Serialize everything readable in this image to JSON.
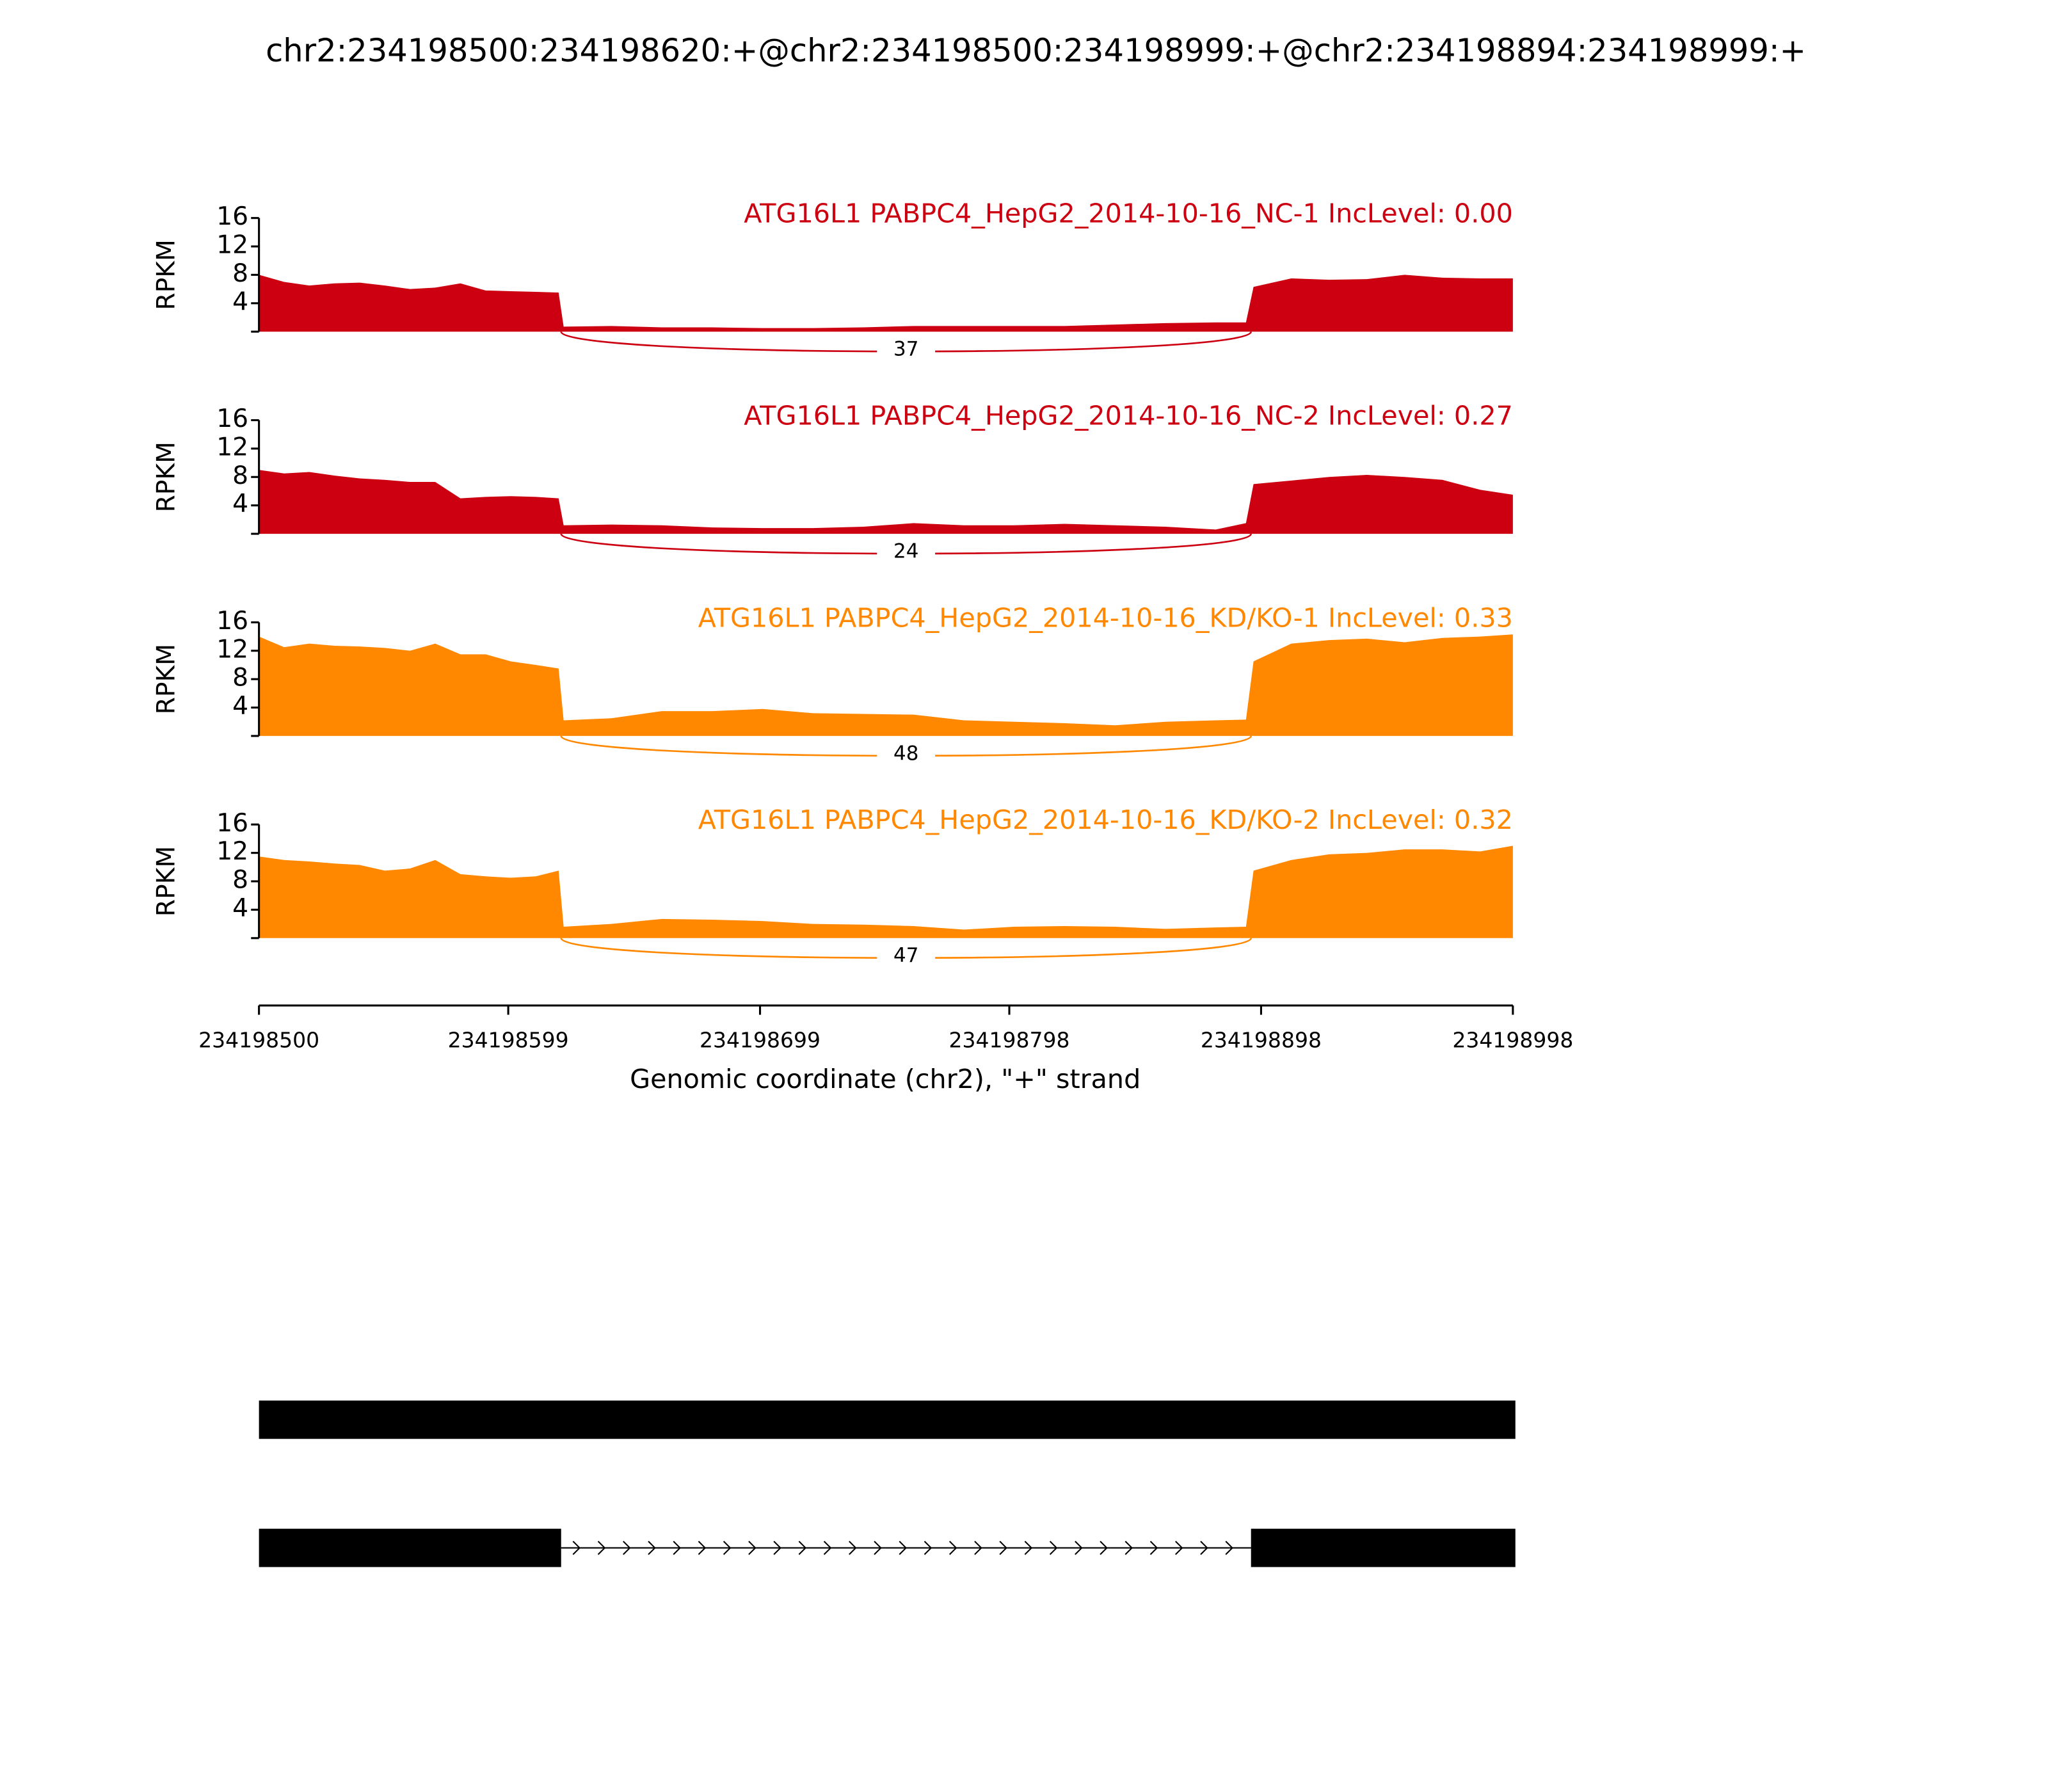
{
  "title": "chr2:234198500:234198620:+@chr2:234198500:234198999:+@chr2:234198894:234198999:+",
  "chart_data": [
    {
      "type": "area",
      "title": "ATG16L1 PABPC4_HepG2_2014-10-16_NC-1 IncLevel: 0.00",
      "ylabel": "RPKM",
      "color": "#cc0011",
      "xlim": [
        234198500,
        234198998
      ],
      "ylim": [
        0,
        16
      ],
      "yticks": [
        4,
        8,
        12,
        16
      ],
      "x": [
        234198500,
        234198510,
        234198520,
        234198530,
        234198540,
        234198550,
        234198560,
        234198570,
        234198580,
        234198590,
        234198600,
        234198610,
        234198619,
        234198621,
        234198640,
        234198660,
        234198680,
        234198700,
        234198720,
        234198740,
        234198760,
        234198780,
        234198800,
        234198820,
        234198840,
        234198860,
        234198880,
        234198892,
        234198895,
        234198910,
        234198925,
        234198940,
        234198955,
        234198970,
        234198985,
        234198998
      ],
      "values": [
        8,
        7,
        6.5,
        6.8,
        6.9,
        6.5,
        6,
        6.2,
        6.8,
        5.8,
        5.7,
        5.6,
        5.5,
        0.7,
        0.8,
        0.6,
        0.6,
        0.5,
        0.5,
        0.6,
        0.8,
        0.8,
        0.8,
        0.8,
        1.0,
        1.2,
        1.3,
        1.3,
        6.3,
        7.5,
        7.3,
        7.4,
        8,
        7.6,
        7.5,
        7.5
      ],
      "junctions": [
        {
          "start": 234198620,
          "end": 234198894,
          "count": 37
        }
      ]
    },
    {
      "type": "area",
      "title": "ATG16L1 PABPC4_HepG2_2014-10-16_NC-2 IncLevel: 0.27",
      "ylabel": "RPKM",
      "color": "#cc0011",
      "xlim": [
        234198500,
        234198998
      ],
      "ylim": [
        0,
        16
      ],
      "yticks": [
        4,
        8,
        12,
        16
      ],
      "x": [
        234198500,
        234198510,
        234198520,
        234198530,
        234198540,
        234198550,
        234198560,
        234198570,
        234198580,
        234198590,
        234198600,
        234198610,
        234198619,
        234198621,
        234198640,
        234198660,
        234198680,
        234198700,
        234198720,
        234198740,
        234198760,
        234198780,
        234198800,
        234198820,
        234198840,
        234198860,
        234198880,
        234198892,
        234198895,
        234198910,
        234198925,
        234198940,
        234198955,
        234198970,
        234198985,
        234198998
      ],
      "values": [
        9,
        8.5,
        8.7,
        8.2,
        7.8,
        7.6,
        7.3,
        7.3,
        5,
        5.2,
        5.3,
        5.2,
        5,
        1.2,
        1.3,
        1.2,
        0.9,
        0.8,
        0.8,
        1.0,
        1.5,
        1.2,
        1.2,
        1.4,
        1.2,
        1.0,
        0.6,
        1.5,
        7,
        7.5,
        8,
        8.3,
        8,
        7.6,
        6.2,
        5.5
      ],
      "junctions": [
        {
          "start": 234198620,
          "end": 234198894,
          "count": 24
        }
      ]
    },
    {
      "type": "area",
      "title": "ATG16L1 PABPC4_HepG2_2014-10-16_KD/KO-1 IncLevel: 0.33",
      "ylabel": "RPKM",
      "color": "#ff8800",
      "xlim": [
        234198500,
        234198998
      ],
      "ylim": [
        0,
        16
      ],
      "yticks": [
        4,
        8,
        12,
        16
      ],
      "x": [
        234198500,
        234198510,
        234198520,
        234198530,
        234198540,
        234198550,
        234198560,
        234198570,
        234198580,
        234198590,
        234198600,
        234198610,
        234198619,
        234198621,
        234198640,
        234198660,
        234198680,
        234198700,
        234198720,
        234198740,
        234198760,
        234198780,
        234198800,
        234198820,
        234198840,
        234198860,
        234198880,
        234198892,
        234198895,
        234198910,
        234198925,
        234198940,
        234198955,
        234198970,
        234198985,
        234198998
      ],
      "values": [
        14,
        12.5,
        13,
        12.7,
        12.6,
        12.4,
        12,
        13,
        11.5,
        11.5,
        10.5,
        10,
        9.5,
        2.2,
        2.5,
        3.5,
        3.5,
        3.8,
        3.2,
        3.1,
        3.0,
        2.2,
        2.0,
        1.8,
        1.5,
        2.0,
        2.2,
        2.3,
        10.5,
        13,
        13.5,
        13.7,
        13.2,
        13.8,
        14,
        14.3
      ],
      "junctions": [
        {
          "start": 234198620,
          "end": 234198894,
          "count": 48
        }
      ]
    },
    {
      "type": "area",
      "title": "ATG16L1 PABPC4_HepG2_2014-10-16_KD/KO-2 IncLevel: 0.32",
      "ylabel": "RPKM",
      "color": "#ff8800",
      "xlim": [
        234198500,
        234198998
      ],
      "ylim": [
        0,
        16
      ],
      "yticks": [
        4,
        8,
        12,
        16
      ],
      "x": [
        234198500,
        234198510,
        234198520,
        234198530,
        234198540,
        234198550,
        234198560,
        234198570,
        234198580,
        234198590,
        234198600,
        234198610,
        234198619,
        234198621,
        234198640,
        234198660,
        234198680,
        234198700,
        234198720,
        234198740,
        234198760,
        234198780,
        234198800,
        234198820,
        234198840,
        234198860,
        234198880,
        234198892,
        234198895,
        234198910,
        234198925,
        234198940,
        234198955,
        234198970,
        234198985,
        234198998
      ],
      "values": [
        11.5,
        11,
        10.8,
        10.5,
        10.3,
        9.5,
        9.8,
        11,
        9,
        8.7,
        8.5,
        8.7,
        9.5,
        1.6,
        2.0,
        2.7,
        2.6,
        2.4,
        2.0,
        1.9,
        1.7,
        1.2,
        1.6,
        1.7,
        1.6,
        1.3,
        1.5,
        1.6,
        9.5,
        11,
        11.8,
        12,
        12.5,
        12.5,
        12.2,
        13
      ],
      "junctions": [
        {
          "start": 234198620,
          "end": 234198894,
          "count": 47
        }
      ],
      "xlabel": "Genomic coordinate (chr2), \"+\" strand",
      "xticks": [
        234198500,
        234198599,
        234198699,
        234198798,
        234198898,
        234198998
      ]
    }
  ],
  "gene_model": {
    "transcripts": [
      {
        "exons": [
          [
            234198500,
            234198999
          ]
        ]
      },
      {
        "exons": [
          [
            234198500,
            234198620
          ],
          [
            234198894,
            234198999
          ]
        ]
      }
    ]
  }
}
